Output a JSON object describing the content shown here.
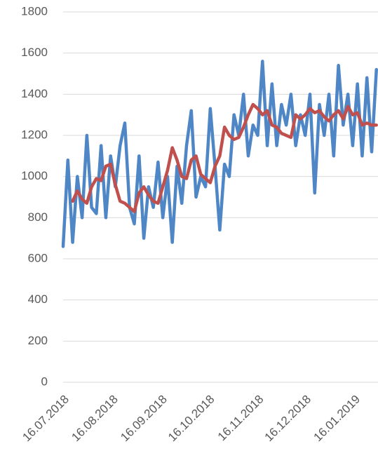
{
  "chart_data": {
    "type": "line",
    "x": [
      "16.07.2018",
      "19.07.2018",
      "22.07.2018",
      "25.07.2018",
      "28.07.2018",
      "31.07.2018",
      "03.08.2018",
      "06.08.2018",
      "09.08.2018",
      "12.08.2018",
      "15.08.2018",
      "18.08.2018",
      "21.08.2018",
      "24.08.2018",
      "27.08.2018",
      "30.08.2018",
      "02.09.2018",
      "05.09.2018",
      "08.09.2018",
      "11.09.2018",
      "14.09.2018",
      "17.09.2018",
      "20.09.2018",
      "23.09.2018",
      "26.09.2018",
      "29.09.2018",
      "02.10.2018",
      "05.10.2018",
      "08.10.2018",
      "11.10.2018",
      "14.10.2018",
      "17.10.2018",
      "20.10.2018",
      "23.10.2018",
      "26.10.2018",
      "29.10.2018",
      "01.11.2018",
      "04.11.2018",
      "07.11.2018",
      "10.11.2018",
      "13.11.2018",
      "16.11.2018",
      "19.11.2018",
      "22.11.2018",
      "25.11.2018",
      "28.11.2018",
      "01.12.2018",
      "04.12.2018",
      "07.12.2018",
      "10.12.2018",
      "13.12.2018",
      "16.12.2018",
      "19.12.2018",
      "22.12.2018",
      "25.12.2018",
      "28.12.2018",
      "31.12.2018",
      "03.01.2019",
      "06.01.2019",
      "09.01.2019",
      "12.01.2019",
      "15.01.2019",
      "18.01.2019",
      "21.01.2019",
      "24.01.2019",
      "27.01.2019",
      "30.01.2019"
    ],
    "series": [
      {
        "color": "#4f86c6",
        "values": [
          660,
          1080,
          680,
          1000,
          800,
          1200,
          850,
          820,
          1150,
          800,
          1100,
          950,
          1150,
          1260,
          850,
          770,
          1100,
          700,
          950,
          850,
          1070,
          800,
          1000,
          680,
          1050,
          870,
          1150,
          1320,
          900,
          1000,
          950,
          1330,
          1050,
          740,
          1060,
          1000,
          1300,
          1200,
          1400,
          1100,
          1250,
          1200,
          1560,
          1150,
          1450,
          1150,
          1350,
          1250,
          1400,
          1150,
          1300,
          1200,
          1400,
          920,
          1350,
          1200,
          1400,
          1100,
          1540,
          1250,
          1400,
          1150,
          1450,
          1100,
          1480,
          1120,
          1520
        ]
      },
      {
        "color": "#c0504d",
        "values": [
          null,
          null,
          880,
          930,
          890,
          870,
          950,
          990,
          980,
          1050,
          1060,
          960,
          880,
          870,
          850,
          830,
          920,
          950,
          910,
          880,
          870,
          950,
          1030,
          1140,
          1080,
          1000,
          990,
          1080,
          1100,
          1010,
          990,
          970,
          1050,
          1100,
          1240,
          1200,
          1180,
          1190,
          1240,
          1300,
          1350,
          1330,
          1300,
          1320,
          1250,
          1240,
          1210,
          1200,
          1190,
          1300,
          1280,
          1300,
          1330,
          1310,
          1320,
          1290,
          1270,
          1300,
          1320,
          1280,
          1340,
          1300,
          1310,
          1250,
          1260,
          1250,
          1250
        ]
      }
    ],
    "xlim": [
      "16.07.2018",
      "31.01.2019"
    ],
    "xticks": [
      "16.07.2018",
      "16.08.2018",
      "16.09.2018",
      "16.10.2018",
      "16.11.2018",
      "16.12.2018",
      "16.01.2019"
    ],
    "ylim": [
      0,
      1800
    ],
    "yticks": [
      0,
      200,
      400,
      600,
      800,
      1000,
      1200,
      1400,
      1600,
      1800
    ],
    "grid": true
  }
}
